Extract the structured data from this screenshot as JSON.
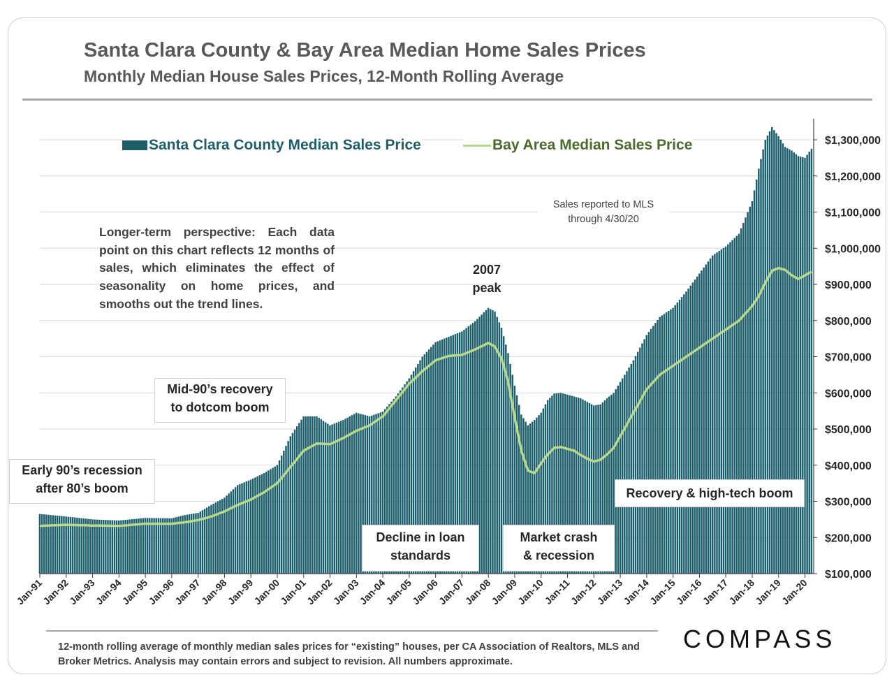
{
  "header": {
    "title": "Santa Clara County & Bay Area Median Home Sales Prices",
    "subtitle": "Monthly Median House Sales Prices, 12-Month Rolling Average"
  },
  "legend": {
    "bar": "Santa Clara County Median Sales Price",
    "line": "Bay Area Median Sales Price"
  },
  "annotations": {
    "note": "Longer-term perspective: Each data point on this chart reflects 12 months of sales, which eliminates the effect of seasonality on home prices, and smooths out the trend lines.",
    "mls_line1": "Sales reported to MLS",
    "mls_line2": "through 4/30/20",
    "peak_line1": "2007",
    "peak_line2": "peak",
    "mid90_line1": "Mid-90’s recovery",
    "mid90_line2": "to dotcom boom",
    "early90_line1": "Early 90’s recession",
    "early90_line2": "after 80’s boom",
    "decline_line1": "Decline in loan",
    "decline_line2": "standards",
    "crash_line1": "Market crash",
    "crash_line2": "& recession",
    "recovery": "Recovery & high-tech boom"
  },
  "footer": {
    "text": "12-month rolling average of monthly median sales prices for “existing” houses, per CA Association of Realtors, MLS and Broker Metrics.  Analysis may contain errors and subject to revision. All numbers approximate.",
    "logo": "COMPASS"
  },
  "colors": {
    "bar": "#1b5e6b",
    "line": "#b6d98e",
    "grid": "#d9d9d9"
  },
  "chart_data": {
    "type": "bar",
    "title": "Santa Clara County & Bay Area Median Home Sales Prices",
    "ylim": [
      100000,
      1360000
    ],
    "yticks": [
      100000,
      200000,
      300000,
      400000,
      500000,
      600000,
      700000,
      800000,
      900000,
      1000000,
      1100000,
      1200000,
      1300000
    ],
    "ytick_labels": [
      "$100,000",
      "$200,000",
      "$300,000",
      "$400,000",
      "$500,000",
      "$600,000",
      "$700,000",
      "$800,000",
      "$900,000",
      "$1,000,000",
      "$1,100,000",
      "$1,200,000",
      "$1,300,000"
    ],
    "x_labels": [
      "Jan-91",
      "Jan-92",
      "Jan-93",
      "Jan-94",
      "Jan-95",
      "Jan-96",
      "Jan-97",
      "Jan-98",
      "Jan-99",
      "Jan-00",
      "Jan-01",
      "Jan-02",
      "Jan-03",
      "Jan-04",
      "Jan-05",
      "Jan-06",
      "Jan-07",
      "Jan-08",
      "Jan-09",
      "Jan-10",
      "Jan-11",
      "Jan-12",
      "Jan-13",
      "Jan-14",
      "Jan-15",
      "Jan-16",
      "Jan-17",
      "Jan-18",
      "Jan-19",
      "Jan-20"
    ],
    "x_start": 1991.0,
    "x_end": 2020.25,
    "series": [
      {
        "name": "Santa Clara County Median Sales Price",
        "kind": "bar",
        "points": [
          [
            1991.0,
            265000
          ],
          [
            1992.0,
            258000
          ],
          [
            1993.0,
            250000
          ],
          [
            1994.0,
            247000
          ],
          [
            1995.0,
            254000
          ],
          [
            1996.0,
            253000
          ],
          [
            1996.5,
            262000
          ],
          [
            1997.0,
            268000
          ],
          [
            1997.5,
            290000
          ],
          [
            1998.0,
            310000
          ],
          [
            1998.5,
            345000
          ],
          [
            1999.0,
            360000
          ],
          [
            1999.5,
            378000
          ],
          [
            2000.0,
            400000
          ],
          [
            2000.5,
            480000
          ],
          [
            2001.0,
            535000
          ],
          [
            2001.5,
            535000
          ],
          [
            2002.0,
            510000
          ],
          [
            2002.5,
            525000
          ],
          [
            2003.0,
            545000
          ],
          [
            2003.5,
            535000
          ],
          [
            2004.0,
            548000
          ],
          [
            2004.5,
            590000
          ],
          [
            2005.0,
            640000
          ],
          [
            2005.5,
            700000
          ],
          [
            2006.0,
            740000
          ],
          [
            2006.5,
            755000
          ],
          [
            2007.0,
            770000
          ],
          [
            2007.5,
            798000
          ],
          [
            2008.0,
            835000
          ],
          [
            2008.25,
            825000
          ],
          [
            2008.5,
            780000
          ],
          [
            2008.75,
            710000
          ],
          [
            2009.0,
            620000
          ],
          [
            2009.25,
            540000
          ],
          [
            2009.5,
            510000
          ],
          [
            2009.75,
            525000
          ],
          [
            2010.0,
            545000
          ],
          [
            2010.25,
            580000
          ],
          [
            2010.5,
            598000
          ],
          [
            2010.75,
            600000
          ],
          [
            2011.0,
            595000
          ],
          [
            2011.25,
            590000
          ],
          [
            2011.5,
            585000
          ],
          [
            2011.75,
            575000
          ],
          [
            2012.0,
            565000
          ],
          [
            2012.25,
            568000
          ],
          [
            2012.5,
            585000
          ],
          [
            2012.75,
            600000
          ],
          [
            2013.0,
            630000
          ],
          [
            2013.5,
            690000
          ],
          [
            2014.0,
            760000
          ],
          [
            2014.5,
            810000
          ],
          [
            2015.0,
            835000
          ],
          [
            2015.5,
            880000
          ],
          [
            2016.0,
            930000
          ],
          [
            2016.5,
            980000
          ],
          [
            2017.0,
            1005000
          ],
          [
            2017.5,
            1040000
          ],
          [
            2018.0,
            1130000
          ],
          [
            2018.25,
            1220000
          ],
          [
            2018.5,
            1300000
          ],
          [
            2018.75,
            1335000
          ],
          [
            2019.0,
            1310000
          ],
          [
            2019.25,
            1280000
          ],
          [
            2019.5,
            1270000
          ],
          [
            2019.75,
            1255000
          ],
          [
            2020.0,
            1250000
          ],
          [
            2020.25,
            1275000
          ]
        ]
      },
      {
        "name": "Bay Area Median Sales Price",
        "kind": "line",
        "points": [
          [
            1991.0,
            232000
          ],
          [
            1992.0,
            235000
          ],
          [
            1993.0,
            233000
          ],
          [
            1994.0,
            232000
          ],
          [
            1995.0,
            238000
          ],
          [
            1996.0,
            238000
          ],
          [
            1996.5,
            242000
          ],
          [
            1997.0,
            248000
          ],
          [
            1997.5,
            258000
          ],
          [
            1998.0,
            272000
          ],
          [
            1998.5,
            290000
          ],
          [
            1999.0,
            305000
          ],
          [
            1999.5,
            325000
          ],
          [
            2000.0,
            350000
          ],
          [
            2000.5,
            395000
          ],
          [
            2001.0,
            440000
          ],
          [
            2001.5,
            460000
          ],
          [
            2002.0,
            458000
          ],
          [
            2002.5,
            475000
          ],
          [
            2003.0,
            495000
          ],
          [
            2003.5,
            510000
          ],
          [
            2004.0,
            535000
          ],
          [
            2004.5,
            580000
          ],
          [
            2005.0,
            625000
          ],
          [
            2005.5,
            660000
          ],
          [
            2006.0,
            690000
          ],
          [
            2006.5,
            702000
          ],
          [
            2007.0,
            705000
          ],
          [
            2007.5,
            720000
          ],
          [
            2008.0,
            738000
          ],
          [
            2008.25,
            728000
          ],
          [
            2008.5,
            695000
          ],
          [
            2008.75,
            630000
          ],
          [
            2009.0,
            530000
          ],
          [
            2009.25,
            440000
          ],
          [
            2009.5,
            385000
          ],
          [
            2009.75,
            378000
          ],
          [
            2010.0,
            405000
          ],
          [
            2010.25,
            430000
          ],
          [
            2010.5,
            448000
          ],
          [
            2010.75,
            450000
          ],
          [
            2011.0,
            445000
          ],
          [
            2011.25,
            440000
          ],
          [
            2011.5,
            428000
          ],
          [
            2011.75,
            418000
          ],
          [
            2012.0,
            410000
          ],
          [
            2012.25,
            415000
          ],
          [
            2012.5,
            430000
          ],
          [
            2012.75,
            448000
          ],
          [
            2013.0,
            480000
          ],
          [
            2013.5,
            545000
          ],
          [
            2014.0,
            610000
          ],
          [
            2014.5,
            650000
          ],
          [
            2015.0,
            675000
          ],
          [
            2015.5,
            700000
          ],
          [
            2016.0,
            725000
          ],
          [
            2016.5,
            750000
          ],
          [
            2017.0,
            775000
          ],
          [
            2017.5,
            800000
          ],
          [
            2018.0,
            840000
          ],
          [
            2018.25,
            868000
          ],
          [
            2018.5,
            905000
          ],
          [
            2018.75,
            938000
          ],
          [
            2019.0,
            945000
          ],
          [
            2019.25,
            940000
          ],
          [
            2019.5,
            925000
          ],
          [
            2019.75,
            915000
          ],
          [
            2020.0,
            925000
          ],
          [
            2020.25,
            935000
          ]
        ]
      }
    ]
  }
}
